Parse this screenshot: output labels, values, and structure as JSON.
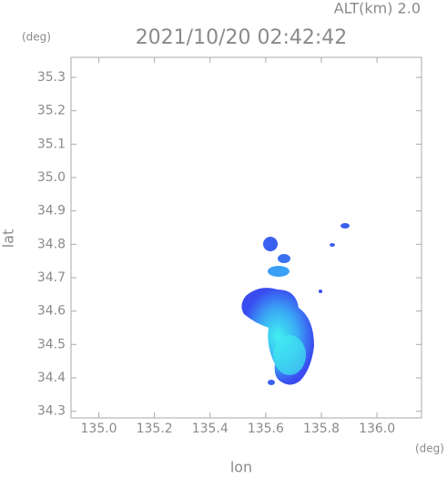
{
  "chart_data": {
    "type": "heatmap",
    "title": "2021/10/20 02:42:42",
    "subtitle": "ALT(km) 2.0",
    "y_unit": "(deg)",
    "x_unit": "(deg)",
    "xlabel": "lon",
    "ylabel": "lat",
    "xlim": [
      134.9,
      136.16
    ],
    "xticks": [
      {
        "value": 135,
        "label": "135.0"
      },
      135.2,
      135.4,
      135.6,
      135.8,
      {
        "value": 136,
        "label": "136.0"
      }
    ],
    "ylim": [
      34.28,
      35.36
    ],
    "yticks": [
      34.3,
      34.4,
      34.5,
      34.6,
      34.7,
      34.8,
      34.9,
      {
        "value": 35,
        "label": "35.0"
      },
      35.1,
      35.2,
      35.3
    ]
  }
}
